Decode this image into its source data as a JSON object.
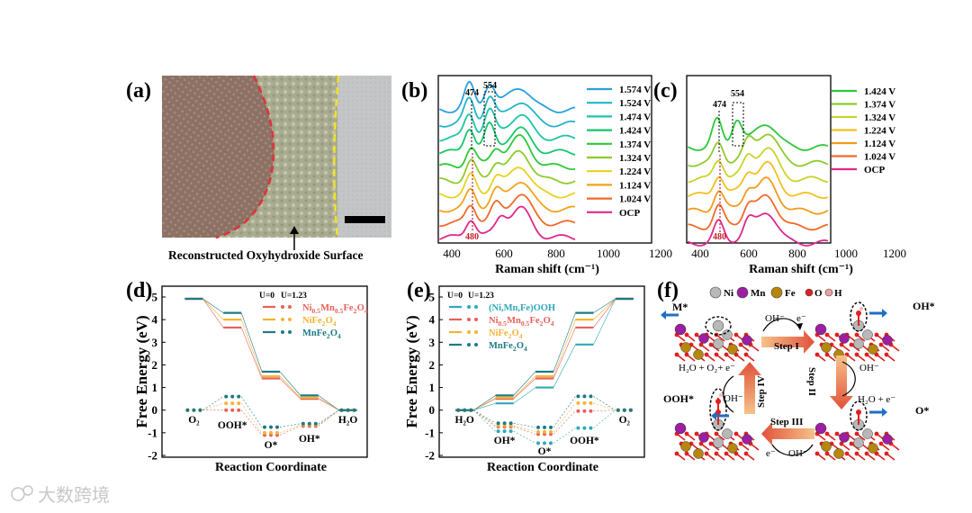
{
  "panels": {
    "a": {
      "label": "(a)",
      "caption": "Reconstructed Oxyhydroxide Surface"
    },
    "b": {
      "label": "(b)",
      "xlabel": "Raman shift (cm⁻¹)",
      "peak_marks": [
        "474",
        "554",
        "480"
      ],
      "xticks": [
        "400",
        "600",
        "800",
        "1000",
        "1200"
      ],
      "legend": [
        "1.574 V",
        "1.524 V",
        "1.474 V",
        "1.424 V",
        "1.374 V",
        "1.324 V",
        "1.224 V",
        "1.124 V",
        "1.024 V",
        "OCP"
      ],
      "colors": [
        "#2a9fe0",
        "#23b4c9",
        "#1fc3a8",
        "#14c76a",
        "#2cc83a",
        "#8ecb2a",
        "#e8d21f",
        "#f3a21a",
        "#f06a2a",
        "#e0288a"
      ]
    },
    "c": {
      "label": "(c)",
      "xlabel": "Raman shift (cm⁻¹)",
      "peak_marks": [
        "474",
        "554",
        "480"
      ],
      "xticks": [
        "400",
        "600",
        "800",
        "1000",
        "1200"
      ],
      "legend": [
        "1.424 V",
        "1.374 V",
        "1.324 V",
        "1.224 V",
        "1.124 V",
        "1.024 V",
        "OCP"
      ],
      "colors": [
        "#2cc83a",
        "#8ecb2a",
        "#c9d42a",
        "#f3c020",
        "#f39a1a",
        "#f06a2a",
        "#e0288a"
      ]
    },
    "d": {
      "label": "(d)",
      "ylabel": "Free Energy (eV)",
      "xlabel": "Reaction Coordinate",
      "yticks": [
        "5",
        "4",
        "3",
        "2",
        "1",
        "0",
        "-1",
        "-2"
      ],
      "u_labels": [
        "U=0",
        "U=1.23"
      ],
      "states": [
        "O₂",
        "OOH*",
        "O*",
        "OH*",
        "H₂O"
      ],
      "legend": [
        {
          "prefix": "Ni",
          "sub1": "0.5",
          "mid": "Mn",
          "sub2": "0.5",
          "rest": "Fe",
          "sub3": "2",
          "end": "O",
          "sub4": "4",
          "color": "#e8605a"
        },
        {
          "prefix": "NiFe",
          "sub1": "2",
          "mid": "O",
          "sub2": "4",
          "rest": "",
          "sub3": "",
          "end": "",
          "sub4": "",
          "color": "#f2b435"
        },
        {
          "prefix": "MnFe",
          "sub1": "2",
          "mid": "O",
          "sub2": "4",
          "rest": "",
          "sub3": "",
          "end": "",
          "sub4": "",
          "color": "#1d7a84"
        }
      ]
    },
    "e": {
      "label": "(e)",
      "ylabel": "Free Energy (eV)",
      "xlabel": "Reaction Coordinate",
      "yticks": [
        "5",
        "4",
        "3",
        "2",
        "1",
        "0",
        "-1",
        "-2"
      ],
      "u_labels": [
        "U=0",
        "U=1.23"
      ],
      "states": [
        "H₂O",
        "OH*",
        "O*",
        "OOH*",
        "O₂"
      ],
      "legend_plain": "(Ni,Mn,Fe)OOH",
      "legend_plain_color": "#2fa8b8"
    },
    "f": {
      "label": "(f)",
      "atom_legend": [
        "Ni",
        "Mn",
        "Fe",
        "O",
        "H"
      ],
      "atom_colors": [
        "#b8b8b8",
        "#9b1fa0",
        "#b7860b",
        "#e02020",
        "#f0a0a0"
      ],
      "steps": [
        "Step I",
        "Step II",
        "Step III",
        "Step IV"
      ],
      "annotations": {
        "m_star": "M*",
        "oh_minus_1": "OH⁻",
        "e_minus_1": "e⁻",
        "oh_star": "OH*",
        "oh_minus_2": "OH⁻",
        "h2o_e": "H₂O + e⁻",
        "o_star": "O*",
        "e_minus_3": "e⁻",
        "oh_minus_3": "OH⁻",
        "ooh_star": "OOH*",
        "oh_minus_4": "OH⁻",
        "h2o_o2": "H₂O + O₂+ e⁻"
      }
    }
  },
  "chart_data": [
    {
      "panel": "b",
      "type": "line",
      "title": "",
      "xlabel": "Raman shift (cm-1)",
      "ylabel": "",
      "xlim": [
        350,
        1200
      ],
      "series": [
        {
          "name": "1.574 V",
          "peaks": [
            474,
            554,
            680
          ]
        },
        {
          "name": "1.524 V",
          "peaks": [
            474,
            554,
            680
          ]
        },
        {
          "name": "1.474 V",
          "peaks": [
            474,
            554,
            680
          ]
        },
        {
          "name": "1.424 V",
          "peaks": [
            474,
            554,
            680
          ]
        },
        {
          "name": "1.374 V",
          "peaks": [
            480,
            580,
            680
          ]
        },
        {
          "name": "1.324 V",
          "peaks": [
            480,
            580,
            680
          ]
        },
        {
          "name": "1.224 V",
          "peaks": [
            480,
            580,
            680
          ]
        },
        {
          "name": "1.124 V",
          "peaks": [
            480,
            580,
            680
          ]
        },
        {
          "name": "1.024 V",
          "peaks": [
            480,
            580,
            680
          ]
        },
        {
          "name": "OCP",
          "peaks": [
            480,
            600,
            680
          ]
        }
      ]
    },
    {
      "panel": "c",
      "type": "line",
      "xlabel": "Raman shift (cm-1)",
      "xlim": [
        350,
        1200
      ],
      "series": [
        {
          "name": "1.424 V",
          "peaks": [
            474,
            554,
            680
          ]
        },
        {
          "name": "1.374 V",
          "peaks": [
            480,
            600,
            680
          ]
        },
        {
          "name": "1.324 V",
          "peaks": [
            480,
            600,
            680
          ]
        },
        {
          "name": "1.224 V",
          "peaks": [
            480,
            600,
            680
          ]
        },
        {
          "name": "1.124 V",
          "peaks": [
            480,
            600,
            680
          ]
        },
        {
          "name": "1.024 V",
          "peaks": [
            480,
            600,
            680
          ]
        },
        {
          "name": "OCP",
          "peaks": [
            480,
            600,
            680
          ]
        }
      ]
    },
    {
      "panel": "d",
      "type": "line",
      "xlabel": "Reaction Coordinate",
      "ylabel": "Free Energy (eV)",
      "ylim": [
        -2,
        5
      ],
      "categories": [
        "O2",
        "OOH*",
        "O*",
        "OH*",
        "H2O"
      ],
      "series": [
        {
          "name": "Ni0.5Mn0.5Fe2O4 U=0",
          "values": [
            4.92,
            3.65,
            1.4,
            0.5,
            0
          ]
        },
        {
          "name": "NiFe2O4 U=0",
          "values": [
            4.92,
            4.0,
            1.5,
            0.55,
            0
          ]
        },
        {
          "name": "MnFe2O4 U=0",
          "values": [
            4.92,
            4.3,
            1.7,
            0.65,
            0
          ]
        },
        {
          "name": "Ni0.5Mn0.5Fe2O4 U=1.23",
          "values": [
            0,
            0.0,
            -1.1,
            -0.7,
            0
          ]
        },
        {
          "name": "NiFe2O4 U=1.23",
          "values": [
            0,
            0.3,
            -1.0,
            -0.65,
            0
          ]
        },
        {
          "name": "MnFe2O4 U=1.23",
          "values": [
            0,
            0.6,
            -0.75,
            -0.6,
            0
          ]
        }
      ]
    },
    {
      "panel": "e",
      "type": "line",
      "xlabel": "Reaction Coordinate",
      "ylabel": "Free Energy (eV)",
      "ylim": [
        -2,
        5
      ],
      "categories": [
        "H2O",
        "OH*",
        "O*",
        "OOH*",
        "O2"
      ],
      "series": [
        {
          "name": "(Ni,Mn,Fe)OOH U=0",
          "values": [
            0,
            0.3,
            1.0,
            2.9,
            4.92
          ]
        },
        {
          "name": "Ni0.5Mn0.5Fe2O4 U=0",
          "values": [
            0,
            0.5,
            1.4,
            3.65,
            4.92
          ]
        },
        {
          "name": "NiFe2O4 U=0",
          "values": [
            0,
            0.55,
            1.5,
            4.0,
            4.92
          ]
        },
        {
          "name": "MnFe2O4 U=0",
          "values": [
            0,
            0.65,
            1.7,
            4.3,
            4.92
          ]
        },
        {
          "name": "(Ni,Mn,Fe)OOH U=1.23",
          "values": [
            0,
            -0.93,
            -1.46,
            -0.79,
            0
          ]
        },
        {
          "name": "Ni0.5Mn0.5Fe2O4 U=1.23",
          "values": [
            0,
            -0.73,
            -1.06,
            -0.04,
            0
          ]
        },
        {
          "name": "NiFe2O4 U=1.23",
          "values": [
            0,
            -0.68,
            -0.96,
            0.31,
            0
          ]
        },
        {
          "name": "MnFe2O4 U=1.23",
          "values": [
            0,
            -0.58,
            -0.76,
            0.61,
            0
          ]
        }
      ]
    }
  ],
  "watermark": "大数跨境"
}
